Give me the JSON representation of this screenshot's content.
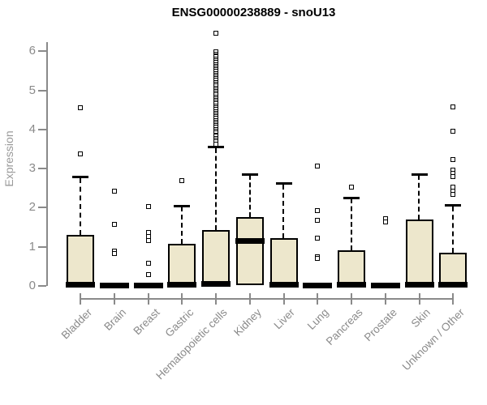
{
  "chart_data": {
    "type": "boxplot",
    "title": "ENSG00000238889 - snoU13",
    "ylabel": "Expression",
    "xlabel": "",
    "ylim": [
      0,
      6.6
    ],
    "yticks": [
      0,
      1,
      2,
      3,
      4,
      5,
      6
    ],
    "grid": false,
    "legend": false,
    "box_fill_color": "#EDE7CC",
    "box_line_color": "#000000",
    "axis_color": "#8a8a8a",
    "categories": [
      "Bladder",
      "Brain",
      "Breast",
      "Gastric",
      "Hematopoietic cells",
      "Kidney",
      "Liver",
      "Lung",
      "Pancreas",
      "Prostate",
      "Skin",
      "Unknown / Other"
    ],
    "series": [
      {
        "category": "Bladder",
        "q1": 0,
        "median": 0.04,
        "q3": 1.3,
        "whisker_low": 0,
        "whisker_high": 2.78,
        "outliers": [
          4.56,
          3.38
        ]
      },
      {
        "category": "Brain",
        "q1": 0,
        "median": 0.02,
        "q3": 0.04,
        "whisker_low": 0,
        "whisker_high": 0.04,
        "outliers": [
          2.43,
          1.58,
          0.88,
          0.82
        ]
      },
      {
        "category": "Breast",
        "q1": 0,
        "median": 0.02,
        "q3": 0.04,
        "whisker_low": 0,
        "whisker_high": 0.04,
        "outliers": [
          2.03,
          1.36,
          1.26,
          1.15,
          0.59,
          0.3
        ]
      },
      {
        "category": "Gastric",
        "q1": 0,
        "median": 0.04,
        "q3": 1.07,
        "whisker_low": 0,
        "whisker_high": 2.04,
        "outliers": [
          2.7
        ]
      },
      {
        "category": "Hematopoietic cells",
        "q1": 0,
        "median": 0.05,
        "q3": 1.42,
        "whisker_low": 0,
        "whisker_high": 3.55,
        "outliers": [
          6.45,
          5.98,
          5.93,
          5.89,
          5.85,
          5.8,
          5.76,
          5.71,
          5.66,
          5.62,
          5.57,
          5.52,
          5.48,
          5.43,
          5.38,
          5.34,
          5.29,
          5.25,
          5.2,
          5.15,
          5.11,
          5.06,
          5.02,
          4.97,
          4.92,
          4.88,
          4.83,
          4.78,
          4.74,
          4.69,
          4.65,
          4.6,
          4.55,
          4.51,
          4.46,
          4.42,
          4.37,
          4.32,
          4.28,
          4.23,
          4.18,
          4.14,
          4.09,
          4.05,
          4.0,
          3.95,
          3.91,
          3.86,
          3.82,
          3.77,
          3.72,
          3.68,
          3.63
        ]
      },
      {
        "category": "Kidney",
        "q1": 0.02,
        "median": 1.14,
        "q3": 1.76,
        "whisker_low": 0.02,
        "whisker_high": 2.85,
        "outliers": []
      },
      {
        "category": "Liver",
        "q1": 0,
        "median": 0.04,
        "q3": 1.22,
        "whisker_low": 0,
        "whisker_high": 2.61,
        "outliers": []
      },
      {
        "category": "Lung",
        "q1": 0,
        "median": 0.02,
        "q3": 0.04,
        "whisker_low": 0,
        "whisker_high": 0.04,
        "outliers": [
          3.07,
          1.93,
          1.67,
          1.22,
          0.75,
          0.71
        ]
      },
      {
        "category": "Pancreas",
        "q1": 0,
        "median": 0.04,
        "q3": 0.92,
        "whisker_low": 0,
        "whisker_high": 2.25,
        "outliers": [
          2.53
        ]
      },
      {
        "category": "Prostate",
        "q1": 0,
        "median": 0.02,
        "q3": 0.04,
        "whisker_low": 0,
        "whisker_high": 0.04,
        "outliers": [
          1.72,
          1.64
        ]
      },
      {
        "category": "Skin",
        "q1": 0,
        "median": 0.04,
        "q3": 1.69,
        "whisker_low": 0,
        "whisker_high": 2.85,
        "outliers": []
      },
      {
        "category": "Unknown / Other",
        "q1": 0,
        "median": 0.04,
        "q3": 0.84,
        "whisker_low": 0,
        "whisker_high": 2.06,
        "outliers": [
          4.58,
          3.95,
          3.22,
          2.97,
          2.88,
          2.8,
          2.52,
          2.42,
          2.33
        ]
      }
    ]
  }
}
